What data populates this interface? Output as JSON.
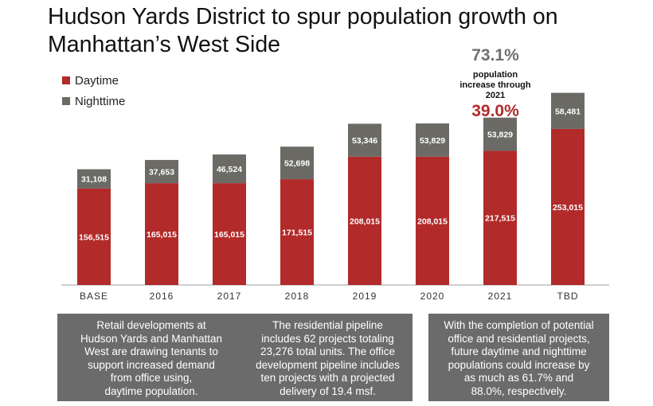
{
  "title": "Hudson Yards District to spur population growth on Manhattan’s West Side",
  "colors": {
    "daytime": "#b22a2a",
    "nighttime": "#6b6a64",
    "axis": "#bfbfbf",
    "highlight_red": "#b22a2a",
    "highlight_gray": "#707070"
  },
  "annotation": {
    "total_pct": "73.1%",
    "note_lines": [
      "population",
      "increase through",
      "2021"
    ],
    "daytime_pct": "39.0%"
  },
  "chart_data": {
    "type": "bar",
    "stacked": true,
    "categories": [
      "BASE",
      "2016",
      "2017",
      "2018",
      "2019",
      "2020",
      "2021",
      "TBD"
    ],
    "series": [
      {
        "name": "Daytime",
        "values": [
          156515,
          165015,
          165015,
          171515,
          208015,
          208015,
          217515,
          253015
        ],
        "labels": [
          "156,515",
          "165,015",
          "165,015",
          "171,515",
          "208,015",
          "208,015",
          "217,515",
          "253,015"
        ]
      },
      {
        "name": "Nighttime",
        "values": [
          31108,
          37653,
          46524,
          52698,
          53346,
          53829,
          53829,
          58481
        ],
        "labels": [
          "31,108",
          "37,653",
          "46,524",
          "52,698",
          "53,346",
          "53,829",
          "53,829",
          "58,481"
        ]
      }
    ],
    "legend_position": "top-left",
    "grid": false
  },
  "boxes": [
    {
      "lines": [
        "Retail developments at",
        "Hudson Yards and Manhattan",
        "West are drawing tenants to",
        "support increased demand",
        "from office using,",
        "daytime population."
      ]
    },
    {
      "lines": [
        "The residential pipeline",
        "includes 62 projects totaling",
        "23,276 total units. The office",
        "development pipeline includes",
        "ten projects with a projected",
        "delivery of 19.4 msf."
      ]
    },
    {
      "lines": [
        "With the completion of potential",
        "office and residential projects,",
        "future daytime and nighttime",
        "populations could increase by",
        "as much as 61.7% and",
        "88.0%, respectively."
      ]
    }
  ]
}
